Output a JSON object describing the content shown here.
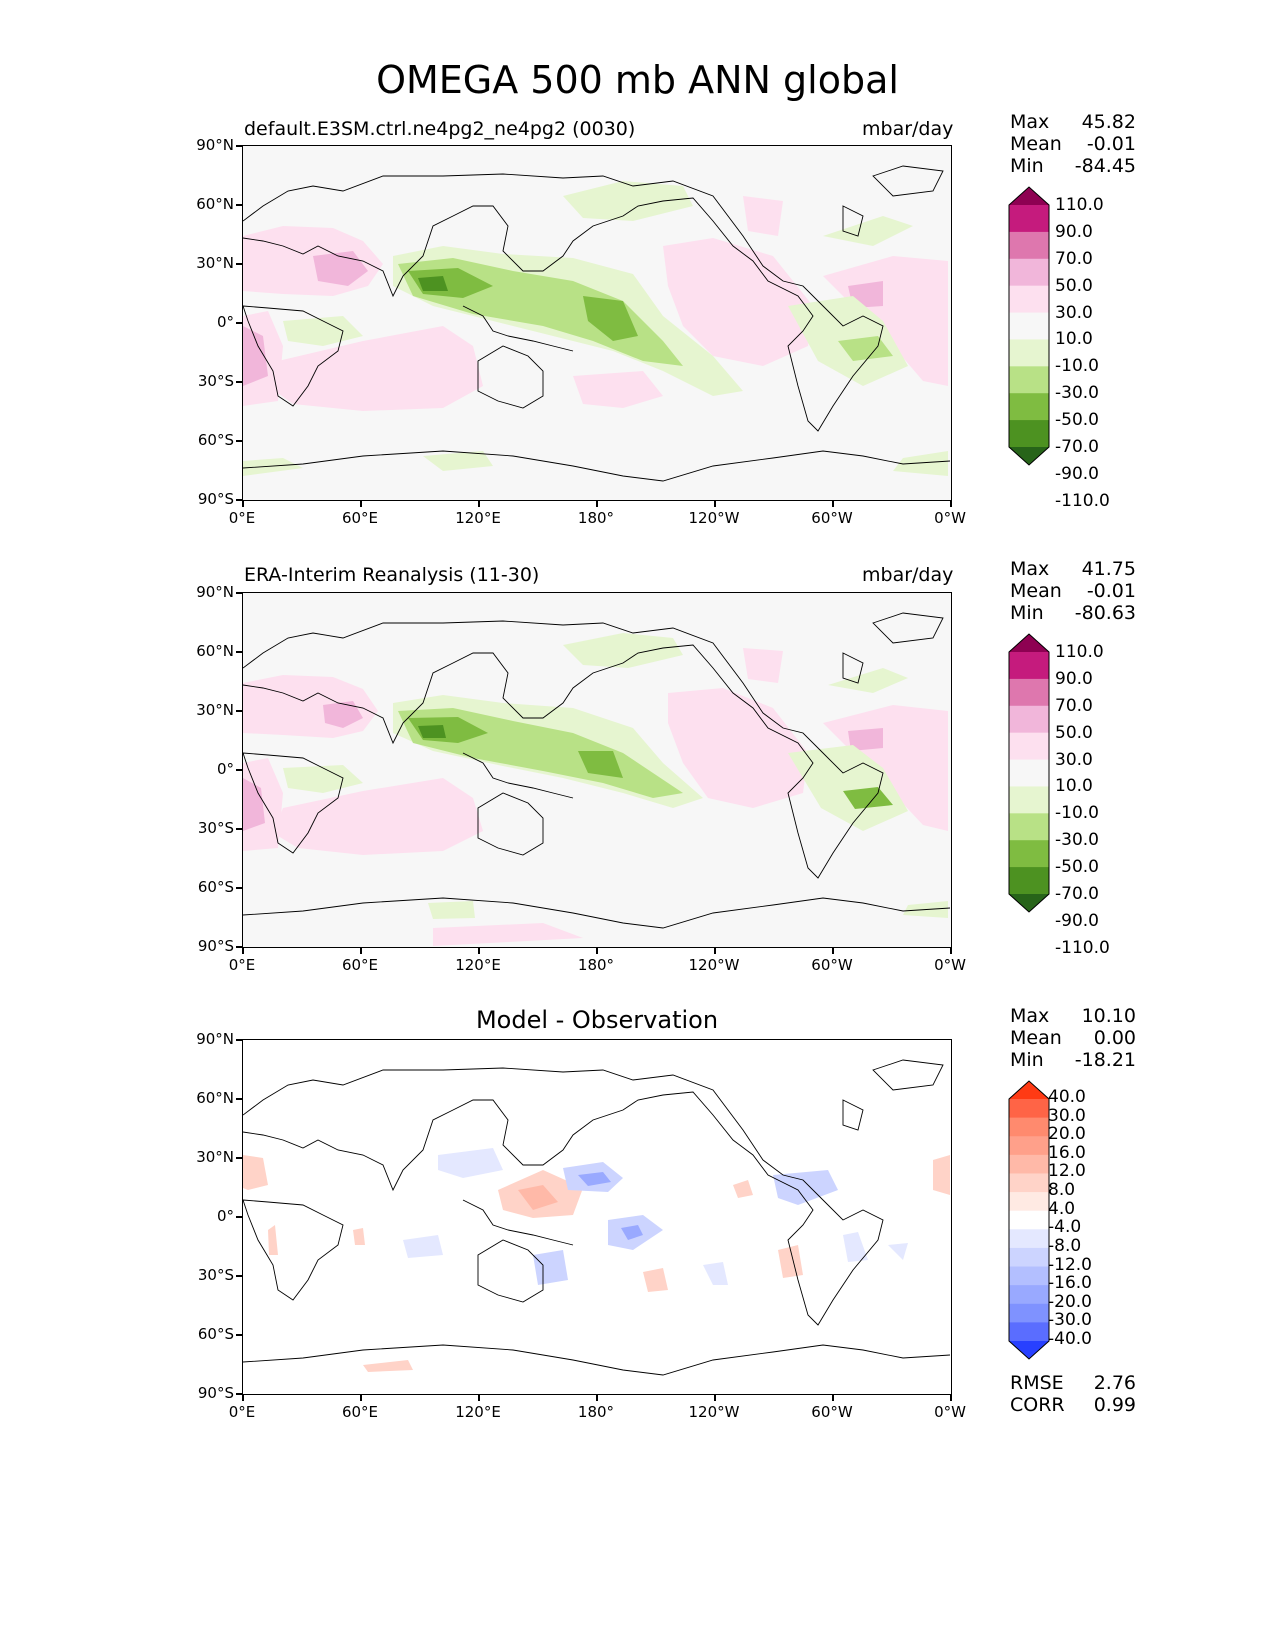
{
  "figure": {
    "title": "OMEGA 500 mb ANN global"
  },
  "lat_ticks": [
    "90°N",
    "60°N",
    "30°N",
    "0°",
    "30°S",
    "60°S",
    "90°S"
  ],
  "lon_ticks": [
    "0°E",
    "60°E",
    "120°E",
    "180°",
    "120°W",
    "60°W",
    "0°W"
  ],
  "panels": [
    {
      "title": "default.E3SM.ctrl.ne4pg2_ne4pg2 (0030)",
      "units": "mbar/day",
      "stats": {
        "max_label": "Max",
        "max": "45.82",
        "mean_label": "Mean",
        "mean": "-0.01",
        "min_label": "Min",
        "min": "-84.45"
      }
    },
    {
      "title": "ERA-Interim Reanalysis (11-30)",
      "units": "mbar/day",
      "stats": {
        "max_label": "Max",
        "max": "41.75",
        "mean_label": "Mean",
        "mean": "-0.01",
        "min_label": "Min",
        "min": "-80.63"
      }
    },
    {
      "title": "Model - Observation",
      "stats": {
        "max_label": "Max",
        "max": "10.10",
        "mean_label": "Mean",
        "mean": "0.00",
        "min_label": "Min",
        "min": "-18.21"
      },
      "metrics": {
        "rmse_label": "RMSE",
        "rmse": "2.76",
        "corr_label": "CORR",
        "corr": "0.99"
      }
    }
  ],
  "colorbar_main": {
    "labels": [
      "110.0",
      "90.0",
      "70.0",
      "50.0",
      "30.0",
      "10.0",
      "-10.0",
      "-30.0",
      "-50.0",
      "-70.0",
      "-90.0",
      "-110.0"
    ],
    "colors": [
      "#8e0152",
      "#c51b7d",
      "#de77ae",
      "#f1b6da",
      "#fde0ef",
      "#f7f7f7",
      "#e6f5d0",
      "#b8e186",
      "#7fbc41",
      "#4d9221",
      "#276419"
    ]
  },
  "colorbar_diff": {
    "labels": [
      "40.0",
      "30.0",
      "20.0",
      "16.0",
      "12.0",
      "8.0",
      "4.0",
      "-4.0",
      "-8.0",
      "-12.0",
      "-16.0",
      "-20.0",
      "-30.0",
      "-40.0"
    ],
    "colors": [
      "#ff3a14",
      "#ff6446",
      "#ff8a6e",
      "#ffa08a",
      "#ffb9a8",
      "#ffd3c8",
      "#ffeae3",
      "#ffffff",
      "#e4e8ff",
      "#ccd4ff",
      "#b3bfff",
      "#99a9ff",
      "#7f92ff",
      "#5a6dff",
      "#2840ff"
    ]
  },
  "chart_data": {
    "type": "heatmap",
    "title": "OMEGA 500 mb ANN global",
    "x_ticks": [
      "0°E",
      "60°E",
      "120°E",
      "180°",
      "120°W",
      "60°W",
      "0°W"
    ],
    "y_ticks": [
      "90°N",
      "60°N",
      "30°N",
      "0°",
      "30°S",
      "60°S",
      "90°S"
    ],
    "xlim": [
      0,
      360
    ],
    "ylim": [
      -90,
      90
    ],
    "panels": [
      {
        "name": "default.E3SM.ctrl.ne4pg2_ne4pg2 (0030)",
        "units": "mbar/day",
        "max": 45.82,
        "mean": -0.01,
        "min": -84.45
      },
      {
        "name": "ERA-Interim Reanalysis (11-30)",
        "units": "mbar/day",
        "max": 41.75,
        "mean": -0.01,
        "min": -80.63
      },
      {
        "name": "Model - Observation",
        "max": 10.1,
        "mean": 0.0,
        "min": -18.21,
        "rmse": 2.76,
        "corr": 0.99
      }
    ],
    "colorbar_levels_main": [
      -110,
      -90,
      -70,
      -50,
      -30,
      -10,
      10,
      30,
      50,
      70,
      90,
      110
    ],
    "colorbar_levels_diff": [
      -40,
      -30,
      -20,
      -16,
      -12,
      -8,
      -4,
      4,
      8,
      12,
      16,
      20,
      30,
      40
    ]
  }
}
